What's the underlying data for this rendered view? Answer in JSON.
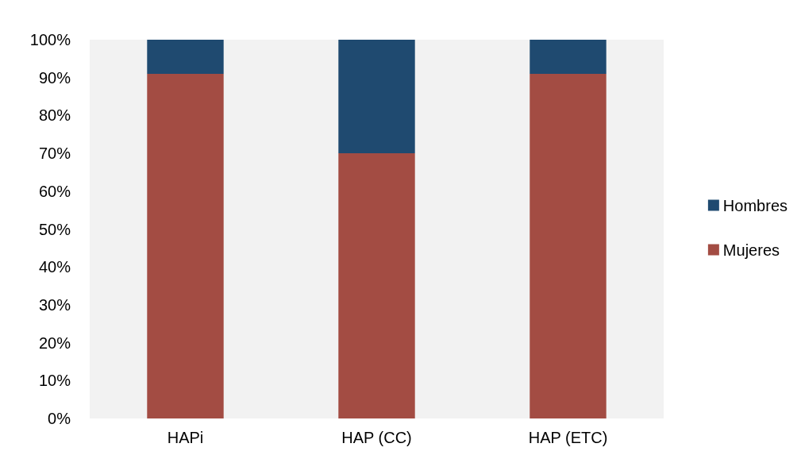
{
  "chart_data": {
    "type": "bar",
    "stacked": true,
    "categories": [
      "HAPi",
      "HAP (CC)",
      "HAP (ETC)"
    ],
    "series": [
      {
        "name": "Mujeres",
        "color": "#a34c43",
        "values": [
          91,
          70,
          91
        ]
      },
      {
        "name": "Hombres",
        "color": "#1f4a70",
        "values": [
          9,
          30,
          9
        ]
      }
    ],
    "ylim": [
      0,
      100
    ],
    "yticks": [
      {
        "value": 0,
        "label": "0%"
      },
      {
        "value": 10,
        "label": "10%"
      },
      {
        "value": 20,
        "label": "20%"
      },
      {
        "value": 30,
        "label": "30%"
      },
      {
        "value": 40,
        "label": "40%"
      },
      {
        "value": 50,
        "label": "50%"
      },
      {
        "value": 60,
        "label": "60%"
      },
      {
        "value": 70,
        "label": "70%"
      },
      {
        "value": 80,
        "label": "80%"
      },
      {
        "value": 90,
        "label": "90%"
      },
      {
        "value": 100,
        "label": "100%"
      }
    ],
    "grid": false,
    "legend": "right"
  }
}
